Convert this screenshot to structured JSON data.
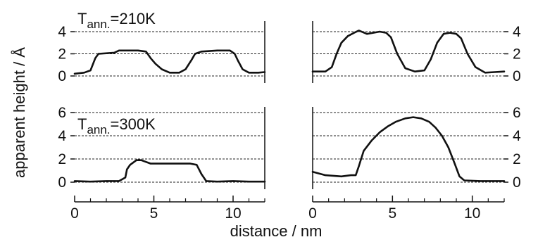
{
  "chart_data": {
    "type": "line",
    "xlabel": "distance / nm",
    "ylabel": "apparent height / Å",
    "grid": "dashed horizontal",
    "panels": [
      {
        "row": "top",
        "col": "left",
        "label_main": "T",
        "label_sub": "ann.",
        "label_rest": "=210K",
        "xlim": [
          0,
          12
        ],
        "ylim": [
          0,
          4
        ],
        "xticks": [
          0,
          5,
          10
        ],
        "yticks": [
          0,
          2,
          4
        ],
        "series": [
          {
            "points": [
              [
                0,
                0.2
              ],
              [
                0.6,
                0.3
              ],
              [
                1.0,
                0.5
              ],
              [
                1.3,
                1.6
              ],
              [
                1.5,
                2.0
              ],
              [
                2.5,
                2.1
              ],
              [
                2.8,
                2.3
              ],
              [
                4.0,
                2.3
              ],
              [
                4.5,
                2.2
              ],
              [
                4.8,
                1.6
              ],
              [
                5.1,
                1.1
              ],
              [
                5.5,
                0.6
              ],
              [
                6.0,
                0.3
              ],
              [
                6.6,
                0.3
              ],
              [
                7.0,
                0.6
              ],
              [
                7.4,
                1.5
              ],
              [
                7.6,
                2.0
              ],
              [
                8.0,
                2.2
              ],
              [
                9.0,
                2.3
              ],
              [
                9.8,
                2.3
              ],
              [
                10.1,
                2.0
              ],
              [
                10.3,
                1.4
              ],
              [
                10.6,
                0.6
              ],
              [
                11.0,
                0.3
              ],
              [
                11.6,
                0.3
              ],
              [
                12.0,
                0.35
              ]
            ]
          }
        ]
      },
      {
        "row": "top",
        "col": "right",
        "xlim": [
          0,
          12
        ],
        "ylim": [
          0,
          4
        ],
        "xticks": [
          0,
          5,
          10
        ],
        "yticks": [
          0,
          2,
          4
        ],
        "series": [
          {
            "points": [
              [
                0,
                0.4
              ],
              [
                0.8,
                0.4
              ],
              [
                1.2,
                0.8
              ],
              [
                1.5,
                2.0
              ],
              [
                1.8,
                3.0
              ],
              [
                2.2,
                3.6
              ],
              [
                2.6,
                3.9
              ],
              [
                2.9,
                4.1
              ],
              [
                3.4,
                3.8
              ],
              [
                4.2,
                4.0
              ],
              [
                4.6,
                3.9
              ],
              [
                4.9,
                3.5
              ],
              [
                5.3,
                2.0
              ],
              [
                5.8,
                0.7
              ],
              [
                6.4,
                0.4
              ],
              [
                7.0,
                0.5
              ],
              [
                7.4,
                1.5
              ],
              [
                7.8,
                3.0
              ],
              [
                8.2,
                3.8
              ],
              [
                8.6,
                3.9
              ],
              [
                9.0,
                3.8
              ],
              [
                9.3,
                3.4
              ],
              [
                9.7,
                2.0
              ],
              [
                10.2,
                0.8
              ],
              [
                10.8,
                0.3
              ],
              [
                11.4,
                0.35
              ],
              [
                12.0,
                0.4
              ]
            ]
          }
        ]
      },
      {
        "row": "bottom",
        "col": "left",
        "label_main": "T",
        "label_sub": "ann.",
        "label_rest": "=300K",
        "xlim": [
          0,
          12
        ],
        "ylim": [
          0,
          6
        ],
        "xticks": [
          0,
          5,
          10
        ],
        "yticks": [
          0,
          2,
          4,
          6
        ],
        "series": [
          {
            "points": [
              [
                0,
                0.1
              ],
              [
                1.0,
                0.05
              ],
              [
                2.0,
                0.1
              ],
              [
                2.8,
                0.1
              ],
              [
                3.2,
                0.4
              ],
              [
                3.3,
                1.1
              ],
              [
                3.5,
                1.5
              ],
              [
                3.9,
                1.9
              ],
              [
                4.2,
                1.9
              ],
              [
                4.8,
                1.6
              ],
              [
                5.5,
                1.6
              ],
              [
                6.5,
                1.6
              ],
              [
                7.3,
                1.6
              ],
              [
                7.7,
                1.5
              ],
              [
                8.0,
                0.7
              ],
              [
                8.3,
                0.1
              ],
              [
                9.0,
                0.05
              ],
              [
                10.0,
                0.1
              ],
              [
                11.0,
                0.05
              ],
              [
                12.0,
                0.05
              ]
            ]
          }
        ]
      },
      {
        "row": "bottom",
        "col": "right",
        "xlim": [
          0,
          12
        ],
        "ylim": [
          0,
          6
        ],
        "xticks": [
          0,
          5,
          10
        ],
        "yticks": [
          0,
          2,
          4,
          6
        ],
        "series": [
          {
            "points": [
              [
                0,
                0.9
              ],
              [
                0.8,
                0.6
              ],
              [
                1.8,
                0.5
              ],
              [
                2.4,
                0.6
              ],
              [
                2.7,
                0.6
              ],
              [
                2.9,
                1.4
              ],
              [
                3.2,
                2.7
              ],
              [
                3.7,
                3.6
              ],
              [
                4.2,
                4.3
              ],
              [
                4.7,
                4.8
              ],
              [
                5.2,
                5.2
              ],
              [
                5.8,
                5.5
              ],
              [
                6.3,
                5.6
              ],
              [
                6.8,
                5.5
              ],
              [
                7.3,
                5.2
              ],
              [
                7.7,
                4.7
              ],
              [
                8.1,
                4.0
              ],
              [
                8.5,
                3.0
              ],
              [
                8.9,
                1.6
              ],
              [
                9.2,
                0.5
              ],
              [
                9.5,
                0.15
              ],
              [
                10.5,
                0.1
              ],
              [
                12.0,
                0.1
              ]
            ]
          }
        ]
      }
    ]
  }
}
